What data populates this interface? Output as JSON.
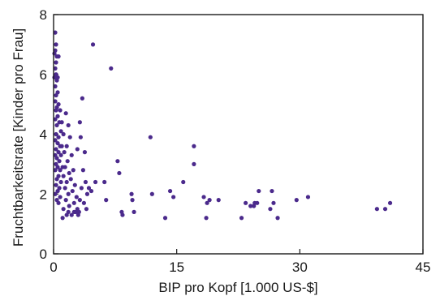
{
  "chart_data": {
    "type": "scatter",
    "xlabel": "BIP pro Kopf [1.000 US-$]",
    "ylabel": "Fruchtbarkeitsrate [Kinder pro Frau]",
    "xlim": [
      0,
      45
    ],
    "ylim": [
      0,
      8
    ],
    "xticks": [
      0,
      15,
      30,
      45
    ],
    "yticks": [
      0,
      2,
      4,
      6,
      8
    ],
    "xtick_labels": [
      "0",
      "15",
      "30",
      "45"
    ],
    "ytick_labels": [
      "0",
      "2",
      "4",
      "6",
      "8"
    ],
    "grid": false,
    "marker_color": "#4b2a8c",
    "points": [
      [
        0.2,
        7.4
      ],
      [
        0.3,
        7.0
      ],
      [
        0.2,
        6.8
      ],
      [
        0.1,
        6.7
      ],
      [
        0.4,
        6.6
      ],
      [
        0.6,
        6.6
      ],
      [
        0.2,
        6.2
      ],
      [
        0.3,
        6.0
      ],
      [
        0.1,
        5.9
      ],
      [
        0.4,
        5.8
      ],
      [
        0.2,
        5.6
      ],
      [
        0.5,
        5.4
      ],
      [
        0.3,
        5.3
      ],
      [
        0.2,
        5.1
      ],
      [
        0.6,
        5.0
      ],
      [
        0.4,
        4.9
      ],
      [
        0.3,
        4.8
      ],
      [
        0.8,
        4.8
      ],
      [
        0.5,
        4.6
      ],
      [
        0.2,
        4.5
      ],
      [
        0.7,
        4.4
      ],
      [
        0.4,
        4.3
      ],
      [
        0.9,
        4.1
      ],
      [
        0.3,
        4.0
      ],
      [
        0.6,
        3.9
      ],
      [
        0.2,
        3.8
      ],
      [
        0.5,
        3.7
      ],
      [
        0.8,
        3.6
      ],
      [
        1.0,
        3.6
      ],
      [
        0.3,
        3.5
      ],
      [
        0.6,
        3.4
      ],
      [
        0.2,
        3.3
      ],
      [
        0.9,
        3.3
      ],
      [
        0.4,
        3.2
      ],
      [
        0.7,
        3.1
      ],
      [
        0.3,
        3.0
      ],
      [
        0.5,
        2.9
      ],
      [
        1.1,
        2.9
      ],
      [
        0.8,
        2.8
      ],
      [
        0.2,
        2.8
      ],
      [
        0.6,
        2.6
      ],
      [
        0.4,
        2.5
      ],
      [
        0.9,
        2.4
      ],
      [
        0.3,
        2.3
      ],
      [
        0.7,
        2.2
      ],
      [
        0.5,
        2.1
      ],
      [
        0.2,
        2.0
      ],
      [
        0.8,
        1.9
      ],
      [
        0.4,
        1.8
      ],
      [
        0.6,
        1.7
      ],
      [
        1.5,
        4.7
      ],
      [
        1.8,
        4.3
      ],
      [
        1.2,
        4.0
      ],
      [
        2.0,
        3.9
      ],
      [
        1.6,
        3.6
      ],
      [
        1.3,
        3.4
      ],
      [
        2.2,
        3.3
      ],
      [
        1.7,
        3.1
      ],
      [
        1.4,
        2.9
      ],
      [
        2.4,
        2.8
      ],
      [
        1.9,
        2.7
      ],
      [
        1.2,
        2.6
      ],
      [
        2.1,
        2.5
      ],
      [
        1.6,
        2.4
      ],
      [
        2.6,
        2.3
      ],
      [
        1.4,
        2.2
      ],
      [
        2.3,
        2.1
      ],
      [
        1.8,
        2.0
      ],
      [
        2.8,
        1.9
      ],
      [
        1.5,
        1.8
      ],
      [
        2.5,
        1.7
      ],
      [
        1.9,
        1.6
      ],
      [
        1.2,
        1.5
      ],
      [
        2.7,
        1.4
      ],
      [
        2.2,
        1.3
      ],
      [
        1.6,
        1.3
      ],
      [
        1.1,
        1.2
      ],
      [
        3.1,
        1.4
      ],
      [
        2.9,
        1.5
      ],
      [
        3.0,
        1.3
      ],
      [
        3.2,
        4.4
      ],
      [
        3.5,
        5.2
      ],
      [
        3.8,
        3.4
      ],
      [
        3.3,
        3.9
      ],
      [
        2.9,
        3.5
      ],
      [
        3.6,
        2.8
      ],
      [
        3.9,
        2.4
      ],
      [
        3.4,
        2.2
      ],
      [
        4.1,
        2.0
      ],
      [
        3.7,
        1.7
      ],
      [
        4.0,
        1.5
      ],
      [
        4.3,
        2.2
      ],
      [
        3.2,
        1.8
      ],
      [
        2.5,
        1.4
      ],
      [
        1.8,
        1.4
      ],
      [
        4.8,
        7.0
      ],
      [
        5.1,
        2.4
      ],
      [
        4.6,
        2.1
      ],
      [
        6.2,
        2.4
      ],
      [
        6.4,
        1.8
      ],
      [
        7.0,
        6.2
      ],
      [
        7.8,
        3.1
      ],
      [
        8.0,
        2.7
      ],
      [
        8.3,
        1.4
      ],
      [
        8.4,
        1.3
      ],
      [
        9.5,
        2.0
      ],
      [
        9.8,
        1.4
      ],
      [
        9.6,
        1.8
      ],
      [
        11.8,
        3.9
      ],
      [
        12.0,
        2.0
      ],
      [
        13.6,
        1.2
      ],
      [
        14.2,
        2.1
      ],
      [
        14.6,
        1.9
      ],
      [
        15.8,
        2.4
      ],
      [
        17.1,
        3.6
      ],
      [
        17.1,
        3.0
      ],
      [
        18.3,
        1.9
      ],
      [
        18.6,
        1.2
      ],
      [
        18.7,
        1.7
      ],
      [
        19.0,
        1.8
      ],
      [
        20.1,
        1.8
      ],
      [
        22.9,
        1.2
      ],
      [
        23.4,
        1.7
      ],
      [
        24.0,
        1.6
      ],
      [
        24.4,
        1.6
      ],
      [
        24.8,
        1.7
      ],
      [
        25.0,
        2.1
      ],
      [
        24.5,
        1.7
      ],
      [
        26.6,
        2.1
      ],
      [
        26.8,
        1.7
      ],
      [
        26.4,
        1.5
      ],
      [
        27.3,
        1.2
      ],
      [
        29.6,
        1.8
      ],
      [
        31.0,
        1.9
      ],
      [
        39.4,
        1.5
      ],
      [
        40.4,
        1.5
      ],
      [
        41.0,
        1.7
      ],
      [
        0.3,
        6.4
      ],
      [
        0.5,
        5.9
      ],
      [
        1.0,
        4.4
      ]
    ]
  }
}
